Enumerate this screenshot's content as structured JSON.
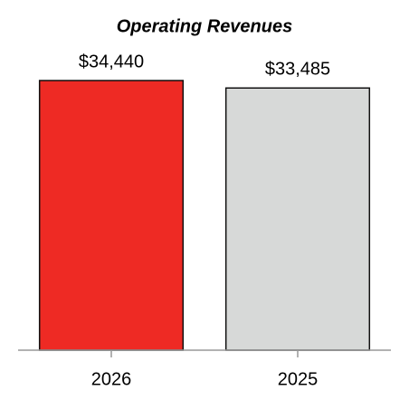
{
  "chart_data": {
    "type": "bar",
    "title": "Operating Revenues",
    "categories": [
      "2026",
      "2025"
    ],
    "values": [
      34440,
      33485
    ],
    "value_labels": [
      "$34,440",
      "$33,485"
    ],
    "colors": [
      "#ee2a24",
      "#d7d9d8"
    ]
  }
}
